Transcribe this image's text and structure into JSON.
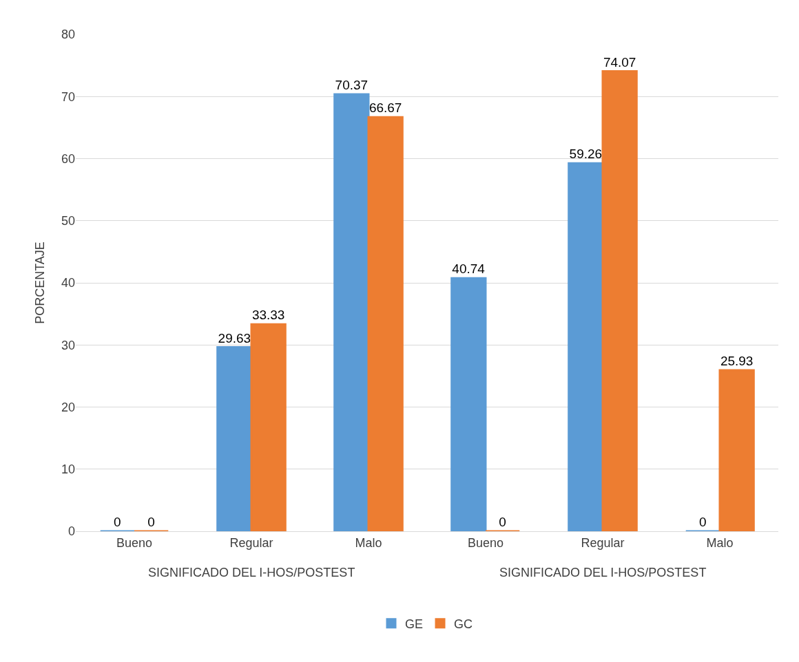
{
  "chart_data": {
    "type": "bar",
    "ylabel": "PORCENTAJE",
    "categories": [
      "Bueno",
      "Regular",
      "Malo",
      "Bueno",
      "Regular",
      "Malo"
    ],
    "series": [
      {
        "name": "GE",
        "color": "#5b9bd5",
        "values": [
          0,
          29.63,
          70.37,
          40.74,
          59.26,
          0
        ]
      },
      {
        "name": "GC",
        "color": "#ed7d31",
        "values": [
          0,
          33.33,
          66.67,
          0,
          74.07,
          25.93
        ]
      }
    ],
    "ylim": [
      0,
      80
    ],
    "yticks": [
      0,
      10,
      20,
      30,
      40,
      50,
      60,
      70,
      80
    ],
    "grid": "y",
    "legend": "bottom",
    "data_labels": true,
    "annotations": [
      "SIGNIFICADO DEL I-HOS/POSTEST",
      "SIGNIFICADO DEL I-HOS/POSTEST"
    ]
  }
}
